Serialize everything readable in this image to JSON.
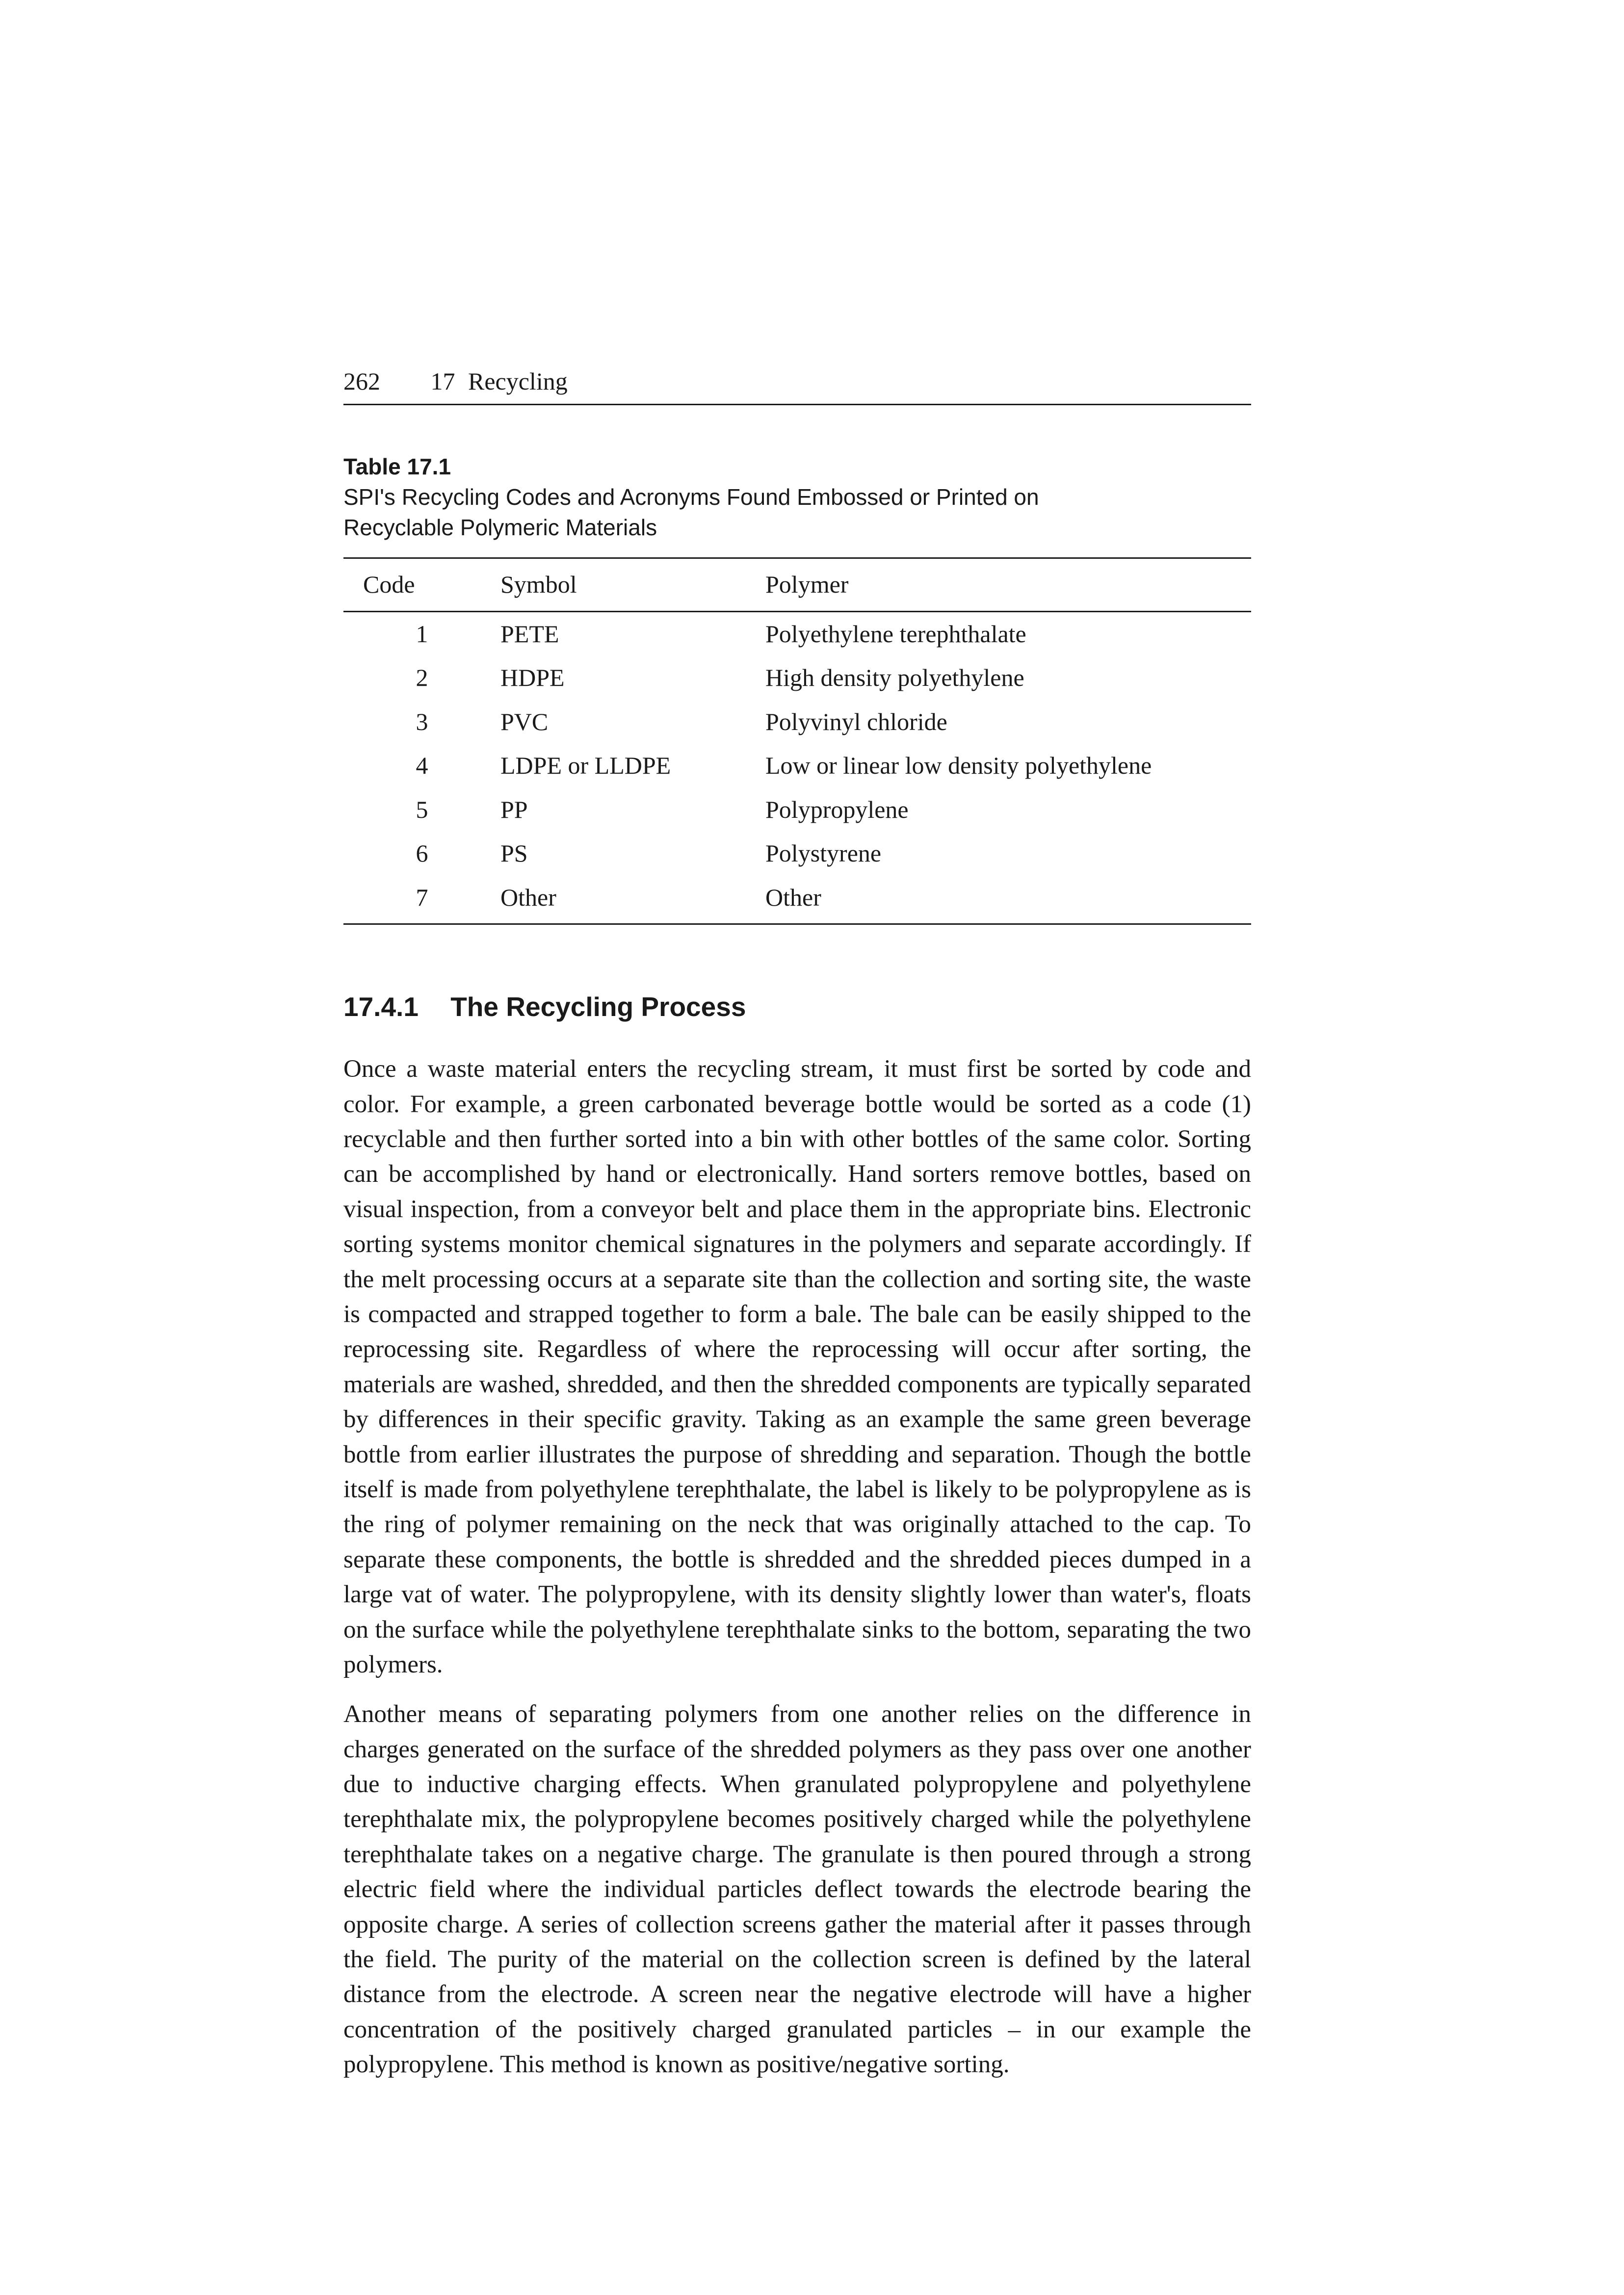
{
  "header": {
    "page_number": "262",
    "chapter_number": "17",
    "chapter_title": "Recycling"
  },
  "table": {
    "label": "Table 17.1",
    "caption": "SPI's Recycling Codes and Acronyms Found Embossed or Printed on Recyclable Polymeric Materials",
    "columns": [
      "Code",
      "Symbol",
      "Polymer"
    ],
    "rows": [
      [
        "1",
        "PETE",
        "Polyethylene terephthalate"
      ],
      [
        "2",
        "HDPE",
        "High density polyethylene"
      ],
      [
        "3",
        "PVC",
        "Polyvinyl chloride"
      ],
      [
        "4",
        "LDPE or LLDPE",
        "Low or linear low density polyethylene"
      ],
      [
        "5",
        "PP",
        "Polypropylene"
      ],
      [
        "6",
        "PS",
        "Polystyrene"
      ],
      [
        "7",
        "Other",
        "Other"
      ]
    ]
  },
  "section": {
    "number": "17.4.1",
    "title": "The Recycling Process"
  },
  "paragraphs": {
    "p1": "Once a waste material enters the recycling stream, it must first be sorted by code and color. For example, a green carbonated beverage bottle would be sorted as a code (1) recyclable and then further sorted into a bin with other bottles of the same color. Sorting can be accomplished by hand or electronically. Hand sorters remove bottles, based on visual inspection, from a conveyor belt and place them in the appropriate bins. Electronic sorting systems monitor chemical signatures in the polymers and separate accordingly. If the melt processing occurs at a separate site than the collection and sorting site, the waste is compacted and strapped together to form a bale. The bale can be easily shipped to the reprocessing site. Regardless of where the reprocessing will occur after sorting, the materials are washed, shredded, and then the shredded components are typically separated by differences in their specific gravity. Taking as an example the same green beverage bottle from earlier illustrates the purpose of shredding and separation. Though the bottle itself is made from polyethylene terephthalate, the label is likely to be polypropylene as is the ring of polymer remaining on the neck that was originally attached to the cap. To separate these components, the bottle is shredded and the shredded pieces dumped in a large vat of water. The polypropylene, with its density slightly lower than water's, floats on the surface while the polyethylene terephthalate sinks to the bottom, separating the two polymers.",
    "p2": "Another means of separating polymers from one another relies on the difference in charges generated on the surface of the shredded polymers as they pass over one another due to inductive charging effects. When granulated polypropylene and polyethylene terephthalate mix, the polypropylene becomes positively charged while the polyethylene terephthalate takes on a negative charge. The granulate is then poured through a strong electric field where the individual particles deflect towards the electrode bearing the opposite charge. A series of collection screens gather the material after it passes through the field. The purity of the material on the collection screen is defined by the lateral distance from the electrode. A screen near the negative electrode will have a higher concentration of the positively charged granulated particles – in our example the polypropylene. This method is known as positive/negative sorting."
  }
}
